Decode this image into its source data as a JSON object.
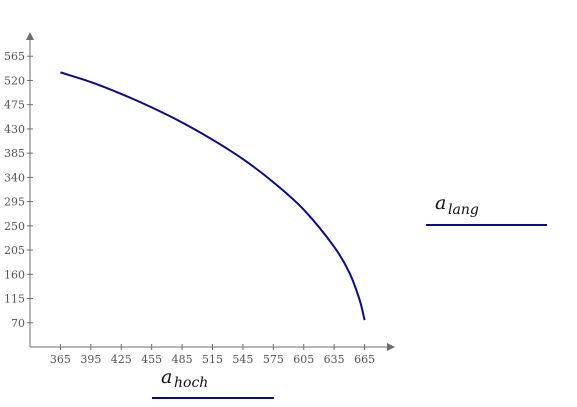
{
  "chart_data": {
    "type": "line",
    "xlabel": {
      "base": "a",
      "sub": "hoch"
    },
    "ylabel": {
      "base": "a",
      "sub": "lang"
    },
    "x_ticks": [
      "365",
      "395",
      "425",
      "455",
      "485",
      "515",
      "545",
      "575",
      "605",
      "635",
      "665"
    ],
    "y_ticks": [
      "70",
      "115",
      "160",
      "205",
      "250",
      "295",
      "340",
      "385",
      "430",
      "475",
      "520",
      "565"
    ],
    "xlim": [
      335,
      695
    ],
    "ylim": [
      25,
      610
    ],
    "grid": false,
    "legend": "none",
    "series": [
      {
        "color": "#0a0a8c",
        "x": [
          365,
          395,
          425,
          455,
          485,
          515,
          545,
          575,
          605,
          635,
          650,
          660,
          665
        ],
        "y": [
          535,
          517,
          495,
          470,
          442,
          410,
          374,
          331,
          280,
          211,
          163,
          113,
          75
        ]
      }
    ]
  }
}
